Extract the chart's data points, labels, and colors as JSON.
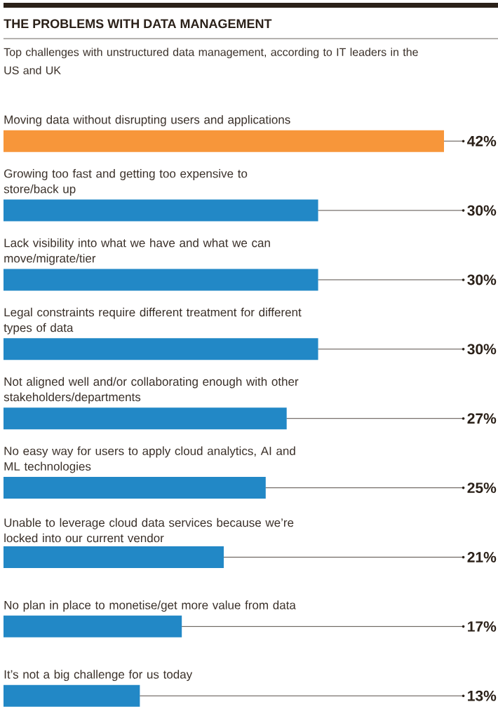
{
  "chart_data": {
    "type": "bar",
    "orientation": "horizontal",
    "title": "THE PROBLEMS WITH DATA MANAGEMENT",
    "subtitle": "Top challenges with unstructured data management, according to IT leaders in the US and UK",
    "categories": [
      "Moving data without disrupting users and applications",
      "Growing too fast and getting too expensive to store/back up",
      "Lack visibility into what we have and what we can move/migrate/tier",
      "Legal constraints require different treatment for different types of data",
      "Not aligned well and/or collaborating enough with other stakeholders/departments",
      "No easy way for users to apply cloud analytics, AI and ML technologies",
      "Unable to leverage cloud data services because we’re locked into our current vendor",
      "No plan in place to monetise/get more value from data",
      "It’s not a big challenge for us today"
    ],
    "values": [
      42,
      30,
      30,
      30,
      27,
      25,
      21,
      17,
      13
    ],
    "colors": [
      "#f7963a",
      "#2288c6",
      "#2288c6",
      "#2288c6",
      "#2288c6",
      "#2288c6",
      "#2288c6",
      "#2288c6",
      "#2288c6"
    ],
    "value_labels": [
      "42%",
      "30%",
      "30%",
      "30%",
      "27%",
      "25%",
      "21%",
      "17%",
      "13%"
    ]
  }
}
